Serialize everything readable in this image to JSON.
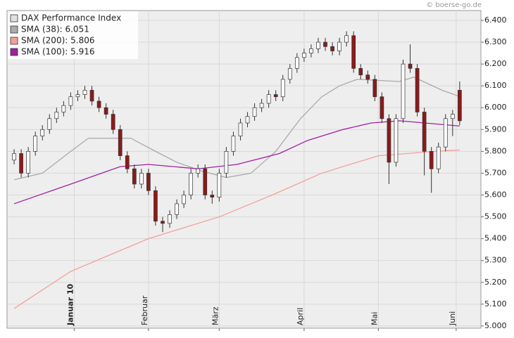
{
  "chart_data": {
    "type": "candlestick",
    "source": "© boerse-go.de",
    "name": "DAX Performance Index",
    "color": "#e0e0e0",
    "up_color": "#ffffff",
    "down_color": "#8b1a1a",
    "legend": "upper left",
    "grid": true,
    "xlim": [
      -2,
      132
    ],
    "xticks": [
      {
        "value": 17,
        "label": "Januar 10"
      },
      {
        "value": 38,
        "label": "Februar"
      },
      {
        "value": 58,
        "label": "März"
      },
      {
        "value": 82,
        "label": "April"
      },
      {
        "value": 103,
        "label": "Mai"
      },
      {
        "value": 125,
        "label": "Juni"
      }
    ],
    "ylim": [
      4990,
      6445
    ],
    "yticks": [
      {
        "value": 5000,
        "label": "5.000"
      },
      {
        "value": 5100,
        "label": "5.100"
      },
      {
        "value": 5200,
        "label": "5.200"
      },
      {
        "value": 5300,
        "label": "5.300"
      },
      {
        "value": 5400,
        "label": "5.400"
      },
      {
        "value": 5500,
        "label": "5.500"
      },
      {
        "value": 5600,
        "label": "5.600"
      },
      {
        "value": 5700,
        "label": "5.700"
      },
      {
        "value": 5800,
        "label": "5.800"
      },
      {
        "value": 5900,
        "label": "5.900"
      },
      {
        "value": 6000,
        "label": "6.000"
      },
      {
        "value": 6100,
        "label": "6.100"
      },
      {
        "value": 6200,
        "label": "6.200"
      },
      {
        "value": 6300,
        "label": "6.300"
      },
      {
        "value": 6400,
        "label": "6.400"
      }
    ],
    "x": [
      0,
      2,
      4,
      6,
      8,
      10,
      12,
      14,
      16,
      18,
      20,
      22,
      24,
      26,
      28,
      30,
      32,
      34,
      36,
      38,
      40,
      42,
      44,
      46,
      48,
      50,
      52,
      54,
      56,
      58,
      60,
      62,
      64,
      66,
      68,
      70,
      72,
      74,
      76,
      78,
      80,
      82,
      84,
      86,
      88,
      90,
      92,
      94,
      96,
      98,
      100,
      102,
      104,
      106,
      108,
      110,
      112,
      114,
      116,
      118,
      120,
      122,
      124,
      126
    ],
    "open": [
      5760,
      5790,
      5700,
      5800,
      5870,
      5900,
      5950,
      5980,
      6010,
      6050,
      6060,
      6080,
      6030,
      6000,
      5970,
      5900,
      5780,
      5720,
      5650,
      5700,
      5620,
      5480,
      5470,
      5510,
      5560,
      5600,
      5700,
      5720,
      5600,
      5590,
      5700,
      5800,
      5870,
      5930,
      5960,
      6000,
      6020,
      6060,
      6050,
      6130,
      6180,
      6230,
      6250,
      6270,
      6300,
      6280,
      6260,
      6300,
      6330,
      6180,
      6150,
      6130,
      6050,
      5950,
      5750,
      5950,
      6200,
      6180,
      5980,
      5800,
      5720,
      5820,
      5950,
      6080
    ],
    "high": [
      5810,
      5810,
      5820,
      5890,
      5920,
      5970,
      6000,
      6030,
      6070,
      6080,
      6100,
      6100,
      6050,
      6020,
      5990,
      5920,
      5800,
      5740,
      5720,
      5720,
      5640,
      5500,
      5530,
      5580,
      5620,
      5720,
      5740,
      5740,
      5620,
      5720,
      5820,
      5890,
      5950,
      5980,
      6020,
      6040,
      6080,
      6080,
      6150,
      6200,
      6250,
      6270,
      6290,
      6320,
      6320,
      6300,
      6320,
      6350,
      6350,
      6200,
      6170,
      6150,
      6070,
      5970,
      5970,
      6220,
      6290,
      6200,
      6000,
      5820,
      5840,
      5970,
      5990,
      6120
    ],
    "low": [
      5740,
      5680,
      5680,
      5780,
      5850,
      5880,
      5930,
      5960,
      5990,
      6030,
      6040,
      6010,
      5980,
      5950,
      5880,
      5760,
      5700,
      5630,
      5630,
      5600,
      5460,
      5430,
      5450,
      5490,
      5540,
      5580,
      5680,
      5580,
      5560,
      5570,
      5680,
      5780,
      5850,
      5910,
      5940,
      5980,
      6000,
      6030,
      6030,
      6110,
      6160,
      6210,
      6230,
      6250,
      6260,
      6240,
      6240,
      6280,
      6160,
      6130,
      6110,
      6030,
      5930,
      5650,
      5730,
      5930,
      6160,
      5960,
      5690,
      5610,
      5700,
      5800,
      5870,
      5920
    ],
    "close": [
      5790,
      5700,
      5800,
      5870,
      5900,
      5950,
      5980,
      6010,
      6050,
      6060,
      6080,
      6030,
      6000,
      5970,
      5900,
      5780,
      5720,
      5650,
      5700,
      5620,
      5480,
      5470,
      5510,
      5560,
      5600,
      5700,
      5720,
      5600,
      5590,
      5700,
      5800,
      5870,
      5930,
      5960,
      6000,
      6020,
      6060,
      6050,
      6130,
      6180,
      6230,
      6250,
      6270,
      6300,
      6280,
      6260,
      6300,
      6330,
      6180,
      6150,
      6130,
      6050,
      5950,
      5750,
      5950,
      6200,
      6180,
      5980,
      5800,
      5720,
      5820,
      5950,
      5970,
      5940
    ],
    "lines": [
      {
        "name": "SMA (38): 6.051",
        "color": "#aaaaaa",
        "x": [
          0,
          8,
          16,
          21,
          33,
          40,
          46,
          53,
          60,
          67,
          74,
          81,
          87,
          92,
          97,
          109,
          113,
          121,
          126
        ],
        "values": [
          5670,
          5700,
          5800,
          5860,
          5860,
          5800,
          5750,
          5710,
          5680,
          5700,
          5800,
          5950,
          6050,
          6100,
          6130,
          6120,
          6140,
          6080,
          6051
        ]
      },
      {
        "name": "SMA (200): 5.806",
        "color": "#f4a09a",
        "x": [
          0,
          16,
          38,
          58,
          73,
          87,
          103,
          119,
          126
        ],
        "values": [
          5080,
          5250,
          5400,
          5500,
          5600,
          5700,
          5780,
          5800,
          5806
        ]
      },
      {
        "name": "SMA (100): 5.916",
        "color": "#a020a0",
        "x": [
          0,
          16,
          30,
          38,
          52,
          63,
          75,
          83,
          93,
          101,
          109,
          126
        ],
        "values": [
          5560,
          5650,
          5730,
          5740,
          5720,
          5740,
          5790,
          5850,
          5900,
          5930,
          5940,
          5916
        ]
      }
    ]
  }
}
